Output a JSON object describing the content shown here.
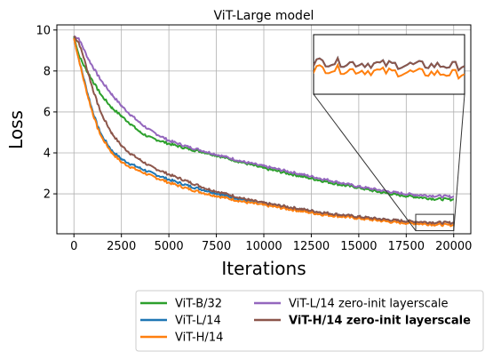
{
  "chart_data": {
    "type": "line",
    "title": "ViT-Large model",
    "xlabel": "Iterations",
    "ylabel": "Loss",
    "xlim": [
      -900,
      20900
    ],
    "ylim": [
      0.05,
      10.25
    ],
    "xticks": [
      0,
      2500,
      5000,
      7500,
      10000,
      12500,
      15000,
      17500,
      20000
    ],
    "xtick_labels": [
      "0",
      "2500",
      "5000",
      "7500",
      "10000",
      "12500",
      "15000",
      "17500",
      "20000"
    ],
    "yticks": [
      2,
      4,
      6,
      8,
      10
    ],
    "ytick_labels": [
      "2",
      "4",
      "6",
      "8",
      "10"
    ],
    "grid": true,
    "legend_position": "below the plot, two columns",
    "inset": {
      "xlim": [
        18000,
        20000
      ],
      "ylim": [
        0.2,
        1.0
      ],
      "position": "upper right"
    },
    "series": [
      {
        "name": "ViT-B/32",
        "color": "#2ca02c",
        "bold": false,
        "points": [
          [
            0,
            9.7
          ],
          [
            250,
            8.8
          ],
          [
            500,
            8.3
          ],
          [
            750,
            7.9
          ],
          [
            1000,
            7.5
          ],
          [
            1250,
            7.1
          ],
          [
            1500,
            6.75
          ],
          [
            2000,
            6.2
          ],
          [
            2500,
            5.8
          ],
          [
            3000,
            5.4
          ],
          [
            3500,
            5.0
          ],
          [
            4000,
            4.75
          ],
          [
            5000,
            4.45
          ],
          [
            6000,
            4.2
          ],
          [
            7000,
            4.0
          ],
          [
            8000,
            3.75
          ],
          [
            9000,
            3.5
          ],
          [
            10000,
            3.25
          ],
          [
            11000,
            3.05
          ],
          [
            12000,
            2.85
          ],
          [
            13000,
            2.65
          ],
          [
            14000,
            2.45
          ],
          [
            15000,
            2.3
          ],
          [
            16000,
            2.1
          ],
          [
            17000,
            1.95
          ],
          [
            18000,
            1.85
          ],
          [
            19000,
            1.75
          ],
          [
            20000,
            1.72
          ]
        ]
      },
      {
        "name": "ViT-L/14",
        "color": "#1f77b4",
        "bold": false,
        "points": [
          [
            0,
            9.6
          ],
          [
            250,
            8.6
          ],
          [
            500,
            7.7
          ],
          [
            750,
            6.8
          ],
          [
            1000,
            6.0
          ],
          [
            1250,
            5.3
          ],
          [
            1500,
            4.8
          ],
          [
            2000,
            4.1
          ],
          [
            2500,
            3.7
          ],
          [
            3000,
            3.45
          ],
          [
            3500,
            3.25
          ],
          [
            4000,
            3.05
          ],
          [
            5000,
            2.7
          ],
          [
            6000,
            2.4
          ],
          [
            7000,
            2.15
          ],
          [
            8000,
            1.9
          ],
          [
            9000,
            1.7
          ],
          [
            10000,
            1.55
          ],
          [
            11000,
            1.4
          ],
          [
            12000,
            1.25
          ],
          [
            13000,
            1.1
          ],
          [
            14000,
            0.98
          ],
          [
            15000,
            0.88
          ],
          [
            16000,
            0.78
          ],
          [
            17000,
            0.7
          ],
          [
            18000,
            0.64
          ],
          [
            19000,
            0.6
          ],
          [
            20000,
            0.58
          ]
        ]
      },
      {
        "name": "ViT-H/14",
        "color": "#ff7f0e",
        "bold": false,
        "points": [
          [
            0,
            9.6
          ],
          [
            250,
            8.6
          ],
          [
            500,
            7.6
          ],
          [
            750,
            6.7
          ],
          [
            1000,
            5.9
          ],
          [
            1250,
            5.2
          ],
          [
            1500,
            4.7
          ],
          [
            2000,
            4.0
          ],
          [
            2500,
            3.55
          ],
          [
            3000,
            3.3
          ],
          [
            3500,
            3.1
          ],
          [
            4000,
            2.9
          ],
          [
            5000,
            2.55
          ],
          [
            6000,
            2.25
          ],
          [
            7000,
            2.0
          ],
          [
            8000,
            1.8
          ],
          [
            9000,
            1.6
          ],
          [
            10000,
            1.45
          ],
          [
            11000,
            1.3
          ],
          [
            12000,
            1.15
          ],
          [
            13000,
            1.0
          ],
          [
            14000,
            0.9
          ],
          [
            15000,
            0.8
          ],
          [
            16000,
            0.7
          ],
          [
            17000,
            0.6
          ],
          [
            18000,
            0.55
          ],
          [
            19000,
            0.5
          ],
          [
            20000,
            0.47
          ]
        ]
      },
      {
        "name": "ViT-L/14 zero-init layerscale",
        "color": "#9467bd",
        "bold": false,
        "points": [
          [
            0,
            9.7
          ],
          [
            250,
            9.6
          ],
          [
            500,
            9.1
          ],
          [
            750,
            8.6
          ],
          [
            1000,
            8.2
          ],
          [
            1250,
            7.8
          ],
          [
            1500,
            7.45
          ],
          [
            2000,
            6.85
          ],
          [
            2500,
            6.3
          ],
          [
            3000,
            5.85
          ],
          [
            3500,
            5.45
          ],
          [
            4000,
            5.1
          ],
          [
            5000,
            4.6
          ],
          [
            6000,
            4.3
          ],
          [
            7000,
            4.05
          ],
          [
            8000,
            3.8
          ],
          [
            9000,
            3.55
          ],
          [
            10000,
            3.35
          ],
          [
            11000,
            3.15
          ],
          [
            12000,
            2.95
          ],
          [
            13000,
            2.75
          ],
          [
            14000,
            2.55
          ],
          [
            15000,
            2.35
          ],
          [
            16000,
            2.2
          ],
          [
            17000,
            2.05
          ],
          [
            18000,
            1.95
          ],
          [
            19000,
            1.9
          ],
          [
            20000,
            1.85
          ]
        ]
      },
      {
        "name": "ViT-H/14 zero-init layerscale",
        "color": "#8c564b",
        "bold": true,
        "points": [
          [
            0,
            9.7
          ],
          [
            250,
            9.4
          ],
          [
            500,
            8.7
          ],
          [
            750,
            7.9
          ],
          [
            1000,
            7.1
          ],
          [
            1250,
            6.4
          ],
          [
            1500,
            5.8
          ],
          [
            2000,
            4.95
          ],
          [
            2500,
            4.35
          ],
          [
            3000,
            3.95
          ],
          [
            3500,
            3.65
          ],
          [
            4000,
            3.35
          ],
          [
            5000,
            2.95
          ],
          [
            6000,
            2.6
          ],
          [
            7000,
            2.25
          ],
          [
            8000,
            2.0
          ],
          [
            9000,
            1.75
          ],
          [
            10000,
            1.55
          ],
          [
            11000,
            1.4
          ],
          [
            12000,
            1.25
          ],
          [
            13000,
            1.1
          ],
          [
            14000,
            0.98
          ],
          [
            15000,
            0.88
          ],
          [
            16000,
            0.78
          ],
          [
            17000,
            0.7
          ],
          [
            18000,
            0.64
          ],
          [
            19000,
            0.6
          ],
          [
            20000,
            0.58
          ]
        ]
      }
    ]
  }
}
